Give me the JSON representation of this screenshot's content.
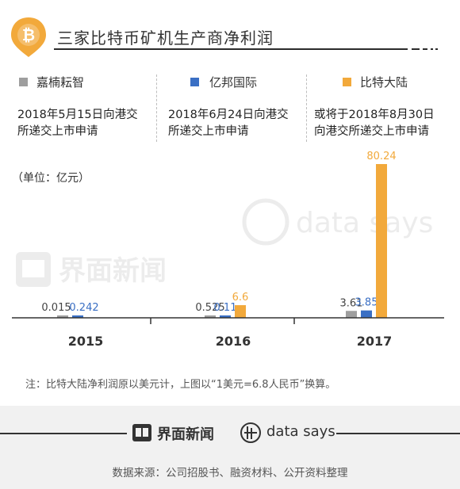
{
  "header": {
    "title": "三家比特币矿机生产商净利润",
    "icon": "bitcoin-pin-icon",
    "accent": "#f2a93b"
  },
  "legend": [
    {
      "name": "嘉楠耘智",
      "color": "#9e9e9e",
      "note_line1": "2018年5月15日向港交",
      "note_line2": "所递交上市申请"
    },
    {
      "name": "亿邦国际",
      "color": "#3a6fc4",
      "note_line1": "2018年6月24日向港交",
      "note_line2": "所递交上市申请"
    },
    {
      "name": "比特大陆",
      "color": "#f2a93b",
      "note_line1": "或将于2018年8月30日",
      "note_line2": "向港交所递交上市申请"
    }
  ],
  "unit_label": "（单位：亿元）",
  "chart_data": {
    "type": "bar",
    "categories": [
      "2015",
      "2016",
      "2017"
    ],
    "series": [
      {
        "name": "嘉楠耘智",
        "values": [
          0.015,
          0.525,
          3.61
        ],
        "labels": [
          "0.015",
          "0.525",
          "3.61"
        ],
        "color": "#9e9e9e"
      },
      {
        "name": "亿邦国际",
        "values": [
          0.242,
          0.11,
          3.85
        ],
        "labels": [
          "0.242",
          "0.11",
          "3.85"
        ],
        "color": "#3a6fc4"
      },
      {
        "name": "比特大陆",
        "values": [
          null,
          6.6,
          80.24
        ],
        "labels": [
          "",
          "6.6",
          "80.24"
        ],
        "color": "#f2a93b"
      }
    ],
    "ylim": [
      0,
      80.24
    ]
  },
  "watermark": {
    "jiemian": "界面新闻",
    "datasays": "data says"
  },
  "footnote": "注：比特大陆净利润原以美元计，上图以“1美元=6.8人民币”换算。",
  "footer": {
    "brand": "界面新闻",
    "datasays": "data says",
    "source": "数据来源：公司招股书、融资材料、公开资料整理"
  }
}
